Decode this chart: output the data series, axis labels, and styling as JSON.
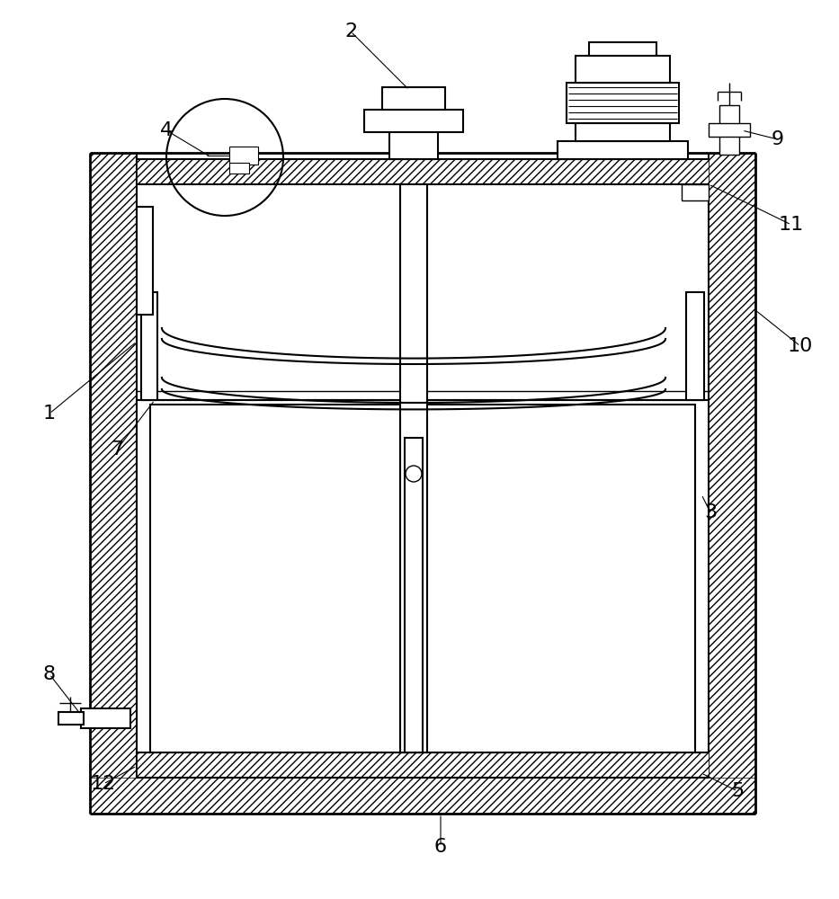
{
  "bg_color": "#ffffff",
  "line_color": "#000000",
  "figsize": [
    9.33,
    10.0
  ],
  "dpi": 100,
  "label_fontsize": 16
}
